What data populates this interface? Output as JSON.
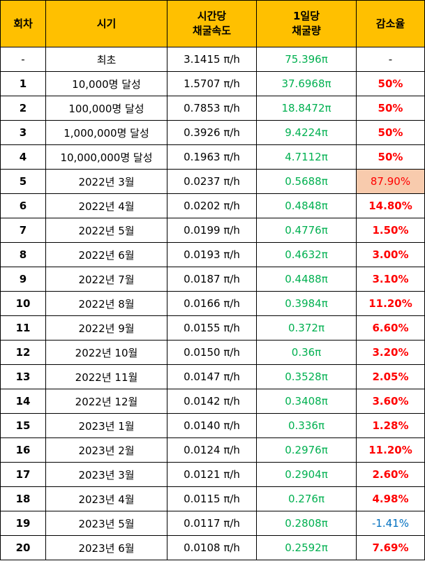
{
  "header": {
    "round": "회차",
    "period": "시기",
    "speed_line1": "시간당",
    "speed_line2": "채굴속도",
    "daily_line1": "1일당",
    "daily_line2": "채굴량",
    "rate": "감소율"
  },
  "colors": {
    "header_bg": "#ffc000",
    "daily_text": "#00b050",
    "rate_text": "#ff0000",
    "rate_highlight_bg": "#f8cbad",
    "rate_negative_text": "#0070c0"
  },
  "rows": [
    {
      "round": "-",
      "period": "최초",
      "speed": "3.1415 π/h",
      "daily": "75.396π",
      "rate": "-"
    },
    {
      "round": "1",
      "period": "10,000명 달성",
      "speed": "1.5707 π/h",
      "daily": "37.6968π",
      "rate": "50%"
    },
    {
      "round": "2",
      "period": "100,000명 달성",
      "speed": "0.7853 π/h",
      "daily": "18.8472π",
      "rate": "50%"
    },
    {
      "round": "3",
      "period": "1,000,000명 달성",
      "speed": "0.3926 π/h",
      "daily": "9.4224π",
      "rate": "50%"
    },
    {
      "round": "4",
      "period": "10,000,000명 달성",
      "speed": "0.1963 π/h",
      "daily": "4.7112π",
      "rate": "50%"
    },
    {
      "round": "5",
      "period": "2022년 3월",
      "speed": "0.0237 π/h",
      "daily": "0.5688π",
      "rate": "87.90%"
    },
    {
      "round": "6",
      "period": "2022년 4월",
      "speed": "0.0202 π/h",
      "daily": "0.4848π",
      "rate": "14.80%"
    },
    {
      "round": "7",
      "period": "2022년 5월",
      "speed": "0.0199 π/h",
      "daily": "0.4776π",
      "rate": "1.50%"
    },
    {
      "round": "8",
      "period": "2022년 6월",
      "speed": "0.0193 π/h",
      "daily": "0.4632π",
      "rate": "3.00%"
    },
    {
      "round": "9",
      "period": "2022년 7월",
      "speed": "0.0187 π/h",
      "daily": "0.4488π",
      "rate": "3.10%"
    },
    {
      "round": "10",
      "period": "2022년 8월",
      "speed": "0.0166 π/h",
      "daily": "0.3984π",
      "rate": "11.20%"
    },
    {
      "round": "11",
      "period": "2022년 9월",
      "speed": "0.0155 π/h",
      "daily": "0.372π",
      "rate": "6.60%"
    },
    {
      "round": "12",
      "period": "2022년 10월",
      "speed": "0.0150 π/h",
      "daily": "0.36π",
      "rate": "3.20%"
    },
    {
      "round": "13",
      "period": "2022년 11월",
      "speed": "0.0147 π/h",
      "daily": "0.3528π",
      "rate": "2.05%"
    },
    {
      "round": "14",
      "period": "2022년 12월",
      "speed": "0.0142 π/h",
      "daily": "0.3408π",
      "rate": "3.60%"
    },
    {
      "round": "15",
      "period": "2023년 1월",
      "speed": "0.0140 π/h",
      "daily": "0.336π",
      "rate": "1.28%"
    },
    {
      "round": "16",
      "period": "2023년 2월",
      "speed": "0.0124 π/h",
      "daily": "0.2976π",
      "rate": "11.20%"
    },
    {
      "round": "17",
      "period": "2023년 3월",
      "speed": "0.0121 π/h",
      "daily": "0.2904π",
      "rate": "2.60%"
    },
    {
      "round": "18",
      "period": "2023년 4월",
      "speed": "0.0115 π/h",
      "daily": "0.276π",
      "rate": "4.98%"
    },
    {
      "round": "19",
      "period": "2023년 5월",
      "speed": "0.0117 π/h",
      "daily": "0.2808π",
      "rate": "-1.41%"
    },
    {
      "round": "20",
      "period": "2023년 6월",
      "speed": "0.0108 π/h",
      "daily": "0.2592π",
      "rate": "7.69%"
    }
  ]
}
